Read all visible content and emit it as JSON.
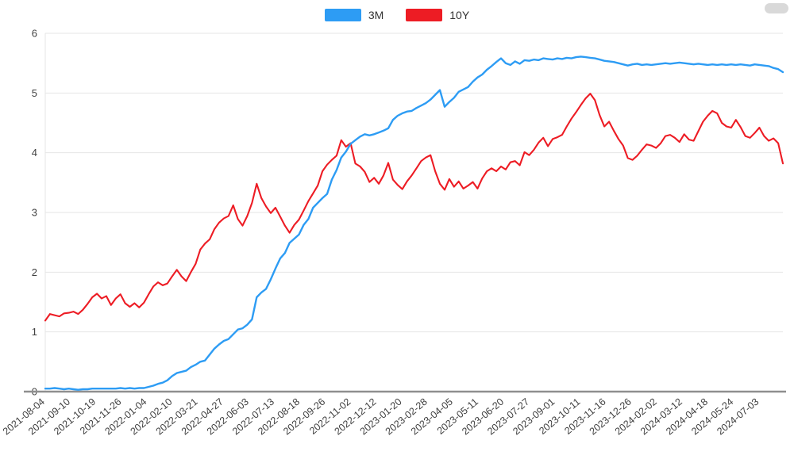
{
  "chart_data": {
    "type": "line",
    "title": "",
    "xlabel": "",
    "ylabel": "",
    "ylim": [
      0,
      6
    ],
    "y_ticks": [
      0,
      1,
      2,
      3,
      4,
      5,
      6
    ],
    "grid": true,
    "legend_position": "top-center",
    "x_tick_labels": [
      "2021-08-04",
      "2021-09-10",
      "2021-10-19",
      "2021-11-26",
      "2022-01-04",
      "2022-02-10",
      "2022-03-21",
      "2022-04-27",
      "2022-06-03",
      "2022-07-13",
      "2022-08-18",
      "2022-09-26",
      "2022-11-02",
      "2022-12-12",
      "2023-01-20",
      "2023-02-28",
      "2023-04-05",
      "2023-05-11",
      "2023-06-20",
      "2023-07-27",
      "2023-09-01",
      "2023-10-11",
      "2023-11-16",
      "2023-12-26",
      "2024-02-02",
      "2024-03-12",
      "2024-04-18",
      "2024-05-24",
      "2024-07-03"
    ],
    "series": [
      {
        "name": "3M",
        "color": "#2d9cf4",
        "values": [
          0.05,
          0.05,
          0.06,
          0.05,
          0.04,
          0.05,
          0.04,
          0.03,
          0.04,
          0.04,
          0.05,
          0.05,
          0.05,
          0.05,
          0.05,
          0.05,
          0.06,
          0.05,
          0.06,
          0.05,
          0.06,
          0.06,
          0.08,
          0.1,
          0.13,
          0.15,
          0.19,
          0.26,
          0.31,
          0.33,
          0.35,
          0.41,
          0.45,
          0.5,
          0.52,
          0.62,
          0.72,
          0.79,
          0.85,
          0.88,
          0.96,
          1.04,
          1.06,
          1.12,
          1.21,
          1.58,
          1.66,
          1.72,
          1.88,
          2.06,
          2.23,
          2.32,
          2.49,
          2.56,
          2.63,
          2.79,
          2.89,
          3.08,
          3.16,
          3.24,
          3.31,
          3.55,
          3.71,
          3.92,
          4.02,
          4.15,
          4.21,
          4.27,
          4.31,
          4.29,
          4.31,
          4.34,
          4.37,
          4.41,
          4.55,
          4.62,
          4.66,
          4.69,
          4.7,
          4.75,
          4.79,
          4.83,
          4.89,
          4.97,
          5.05,
          4.77,
          4.85,
          4.92,
          5.02,
          5.06,
          5.1,
          5.19,
          5.26,
          5.31,
          5.39,
          5.45,
          5.52,
          5.58,
          5.5,
          5.47,
          5.53,
          5.49,
          5.55,
          5.54,
          5.56,
          5.55,
          5.58,
          5.57,
          5.56,
          5.58,
          5.57,
          5.59,
          5.58,
          5.6,
          5.61,
          5.6,
          5.59,
          5.58,
          5.56,
          5.54,
          5.53,
          5.52,
          5.5,
          5.48,
          5.46,
          5.48,
          5.49,
          5.47,
          5.48,
          5.47,
          5.48,
          5.49,
          5.5,
          5.49,
          5.5,
          5.51,
          5.5,
          5.49,
          5.48,
          5.49,
          5.48,
          5.47,
          5.48,
          5.47,
          5.48,
          5.47,
          5.48,
          5.47,
          5.48,
          5.47,
          5.46,
          5.48,
          5.47,
          5.46,
          5.45,
          5.42,
          5.4,
          5.35
        ]
      },
      {
        "name": "10Y",
        "color": "#ed1c24",
        "values": [
          1.19,
          1.3,
          1.28,
          1.26,
          1.31,
          1.32,
          1.34,
          1.3,
          1.37,
          1.47,
          1.58,
          1.64,
          1.56,
          1.6,
          1.45,
          1.56,
          1.63,
          1.48,
          1.42,
          1.48,
          1.41,
          1.49,
          1.63,
          1.76,
          1.83,
          1.78,
          1.81,
          1.93,
          2.04,
          1.93,
          1.85,
          2.0,
          2.14,
          2.38,
          2.48,
          2.55,
          2.72,
          2.83,
          2.9,
          2.94,
          3.12,
          2.89,
          2.78,
          2.94,
          3.16,
          3.48,
          3.24,
          3.1,
          2.99,
          3.08,
          2.93,
          2.78,
          2.66,
          2.79,
          2.88,
          3.03,
          3.19,
          3.32,
          3.45,
          3.69,
          3.8,
          3.88,
          3.95,
          4.21,
          4.1,
          4.16,
          3.82,
          3.77,
          3.68,
          3.51,
          3.58,
          3.48,
          3.62,
          3.83,
          3.55,
          3.46,
          3.39,
          3.52,
          3.62,
          3.74,
          3.86,
          3.92,
          3.96,
          3.69,
          3.48,
          3.38,
          3.56,
          3.43,
          3.52,
          3.4,
          3.45,
          3.51,
          3.4,
          3.57,
          3.69,
          3.74,
          3.69,
          3.77,
          3.72,
          3.84,
          3.86,
          3.79,
          4.01,
          3.96,
          4.05,
          4.17,
          4.25,
          4.11,
          4.23,
          4.26,
          4.3,
          4.44,
          4.57,
          4.68,
          4.8,
          4.91,
          4.99,
          4.88,
          4.63,
          4.44,
          4.52,
          4.37,
          4.23,
          4.12,
          3.91,
          3.88,
          3.95,
          4.05,
          4.14,
          4.12,
          4.08,
          4.16,
          4.28,
          4.3,
          4.25,
          4.18,
          4.31,
          4.22,
          4.2,
          4.36,
          4.52,
          4.62,
          4.7,
          4.66,
          4.5,
          4.44,
          4.42,
          4.55,
          4.43,
          4.28,
          4.25,
          4.33,
          4.42,
          4.28,
          4.2,
          4.24,
          4.16,
          3.82
        ]
      }
    ],
    "style": {
      "grid_color": "#e6e6e6",
      "axis_text_color": "#3f3f3f",
      "baseline_color": "#8f8f8f",
      "background": "#ffffff"
    }
  }
}
